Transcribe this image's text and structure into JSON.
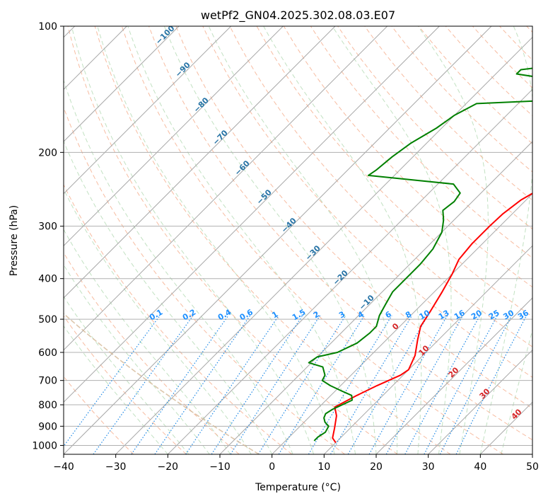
{
  "chart_data": {
    "type": "skew-t",
    "title": "wetPf2_GN04.2025.302.08.03.E07",
    "xlabel": "Temperature (°C)",
    "ylabel": "Pressure (hPa)",
    "xlim": [
      -40,
      50
    ],
    "ylim": [
      1050,
      100
    ],
    "y_scale": "log",
    "grid": true,
    "x_ticks": [
      "−40",
      "−30",
      "−20",
      "−10",
      "0",
      "10",
      "20",
      "30",
      "40",
      "50"
    ],
    "y_ticks": [
      "100",
      "200",
      "300",
      "400",
      "500",
      "600",
      "700",
      "800",
      "900",
      "1000"
    ],
    "y_tick_values": [
      100,
      200,
      300,
      400,
      500,
      600,
      700,
      800,
      900,
      1000
    ],
    "series": [
      {
        "color": "#ff0000",
        "points": [
          [
            10,
            985
          ],
          [
            8.5,
            960
          ],
          [
            7,
            910
          ],
          [
            5,
            850
          ],
          [
            3,
            810
          ],
          [
            5,
            760
          ],
          [
            7,
            720
          ],
          [
            9.5,
            680
          ],
          [
            10,
            660
          ],
          [
            8.5,
            610
          ],
          [
            6,
            560
          ],
          [
            4,
            520
          ],
          [
            3,
            480
          ],
          [
            1.5,
            430
          ],
          [
            0,
            390
          ],
          [
            -1.5,
            360
          ],
          [
            -2,
            330
          ],
          [
            -2,
            300
          ],
          [
            -1.8,
            280
          ],
          [
            -1,
            260
          ],
          [
            0,
            250
          ],
          [
            2.5,
            235
          ],
          [
            4.8,
            220
          ],
          [
            7,
            205
          ],
          [
            9.5,
            188
          ],
          [
            13,
            168
          ],
          [
            17,
            148
          ],
          [
            20,
            138
          ],
          [
            22,
            132
          ],
          [
            24,
            125
          ],
          [
            25.5,
            118
          ],
          [
            28,
            110
          ],
          [
            30,
            102
          ]
        ]
      },
      {
        "color": "#008000",
        "points": [
          [
            5.5,
            975
          ],
          [
            5.5,
            955
          ],
          [
            6,
            930
          ],
          [
            5.5,
            900
          ],
          [
            4,
            880
          ],
          [
            3,
            860
          ],
          [
            2.5,
            840
          ],
          [
            3,
            820
          ],
          [
            3.5,
            810
          ],
          [
            4,
            800
          ],
          [
            5,
            780
          ],
          [
            4,
            760
          ],
          [
            1,
            740
          ],
          [
            -2,
            720
          ],
          [
            -4.5,
            700
          ],
          [
            -5,
            680
          ],
          [
            -7,
            650
          ],
          [
            -10.5,
            635
          ],
          [
            -10,
            615
          ],
          [
            -7,
            600
          ],
          [
            -5,
            570
          ],
          [
            -4.5,
            540
          ],
          [
            -4.5,
            520
          ],
          [
            -6,
            490
          ],
          [
            -7,
            460
          ],
          [
            -8,
            430
          ],
          [
            -8,
            400
          ],
          [
            -8,
            370
          ],
          [
            -8.5,
            340
          ],
          [
            -10,
            310
          ],
          [
            -12,
            290
          ],
          [
            -14,
            275
          ],
          [
            -13.5,
            262
          ],
          [
            -14,
            250
          ],
          [
            -17,
            238
          ],
          [
            -35,
            227
          ],
          [
            -34.5,
            220
          ],
          [
            -34,
            205
          ],
          [
            -33,
            190
          ],
          [
            -31,
            175
          ],
          [
            -30,
            163
          ],
          [
            -28,
            153
          ],
          [
            -13,
            150
          ],
          [
            -12,
            145
          ],
          [
            -14,
            138
          ],
          [
            -20,
            133
          ],
          [
            -26,
            130
          ],
          [
            -26,
            127
          ],
          [
            -22,
            125
          ],
          [
            -16,
            123
          ],
          [
            -12,
            120
          ],
          [
            -10,
            115
          ],
          [
            -8,
            110
          ],
          [
            -6,
            105
          ],
          [
            -4,
            100
          ]
        ]
      }
    ],
    "dry_adiabat_labels": [
      "−100",
      "−90",
      "−80",
      "−70",
      "−60",
      "−50",
      "−40",
      "−30",
      "−20",
      "−10"
    ],
    "moist_adiabat_labels": [
      "0",
      "10",
      "20",
      "30",
      "40"
    ],
    "mixing_ratio_labels": [
      "0.1",
      "0.2",
      "0.4",
      "0.6",
      "1",
      "1.5",
      "2",
      "3",
      "4",
      "6",
      "8",
      "10",
      "13",
      "16",
      "20",
      "25",
      "30",
      "36"
    ],
    "mixing_ratio_values": [
      0.1,
      0.2,
      0.4,
      0.6,
      1,
      1.5,
      2,
      3,
      4,
      6,
      8,
      10,
      13,
      16,
      20,
      25,
      30,
      36
    ]
  }
}
